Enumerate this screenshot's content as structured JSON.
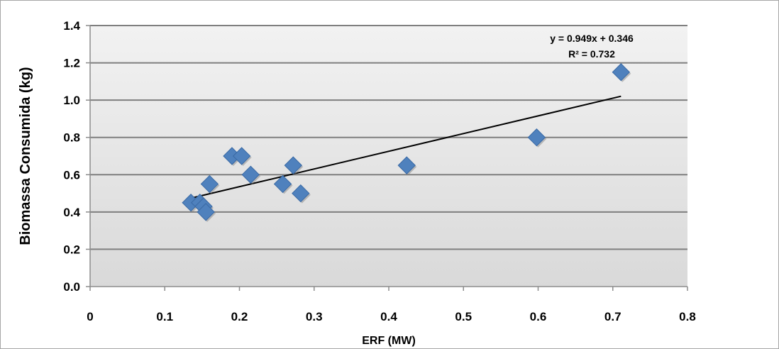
{
  "chart_data": {
    "type": "scatter",
    "title": "",
    "xlabel": "ERF (MW)",
    "ylabel": "Biomassa Consumida (kg)",
    "xlim": [
      0,
      0.8
    ],
    "ylim": [
      0,
      1.4
    ],
    "x_ticks": [
      0,
      0.1,
      0.2,
      0.3,
      0.4,
      0.5,
      0.6,
      0.7,
      0.8
    ],
    "x_tick_labels": [
      "0",
      "0.1",
      "0.2",
      "0.3",
      "0.4",
      "0.5",
      "0.6",
      "0.7",
      "0.8"
    ],
    "y_ticks": [
      0,
      0.2,
      0.4,
      0.6,
      0.8,
      1.0,
      1.2,
      1.4
    ],
    "y_tick_labels": [
      "0.0",
      "0.2",
      "0.4",
      "0.6",
      "0.8",
      "1.0",
      "1.2",
      "1.4"
    ],
    "grid": "horizontal",
    "marker": "diamond",
    "colors": {
      "marker": "#4f81bd",
      "marker_edge": "#3a6aa5",
      "trendline": "#000000",
      "gridline": "#7f7f7f",
      "plot_bg_top": "#f2f2f2",
      "plot_bg_bottom": "#d9d9d9"
    },
    "x": [
      0.135,
      0.147,
      0.152,
      0.155,
      0.16,
      0.19,
      0.203,
      0.215,
      0.258,
      0.272,
      0.282,
      0.424,
      0.598,
      0.711
    ],
    "y": [
      0.45,
      0.45,
      0.43,
      0.4,
      0.55,
      0.7,
      0.7,
      0.6,
      0.55,
      0.65,
      0.5,
      0.65,
      0.8,
      1.15
    ],
    "trendline": {
      "slope": 0.949,
      "intercept": 0.346,
      "x_range": [
        0.135,
        0.711
      ],
      "equation": "y = 0.949x + 0.346",
      "r_squared": "R² = 0.732"
    }
  }
}
